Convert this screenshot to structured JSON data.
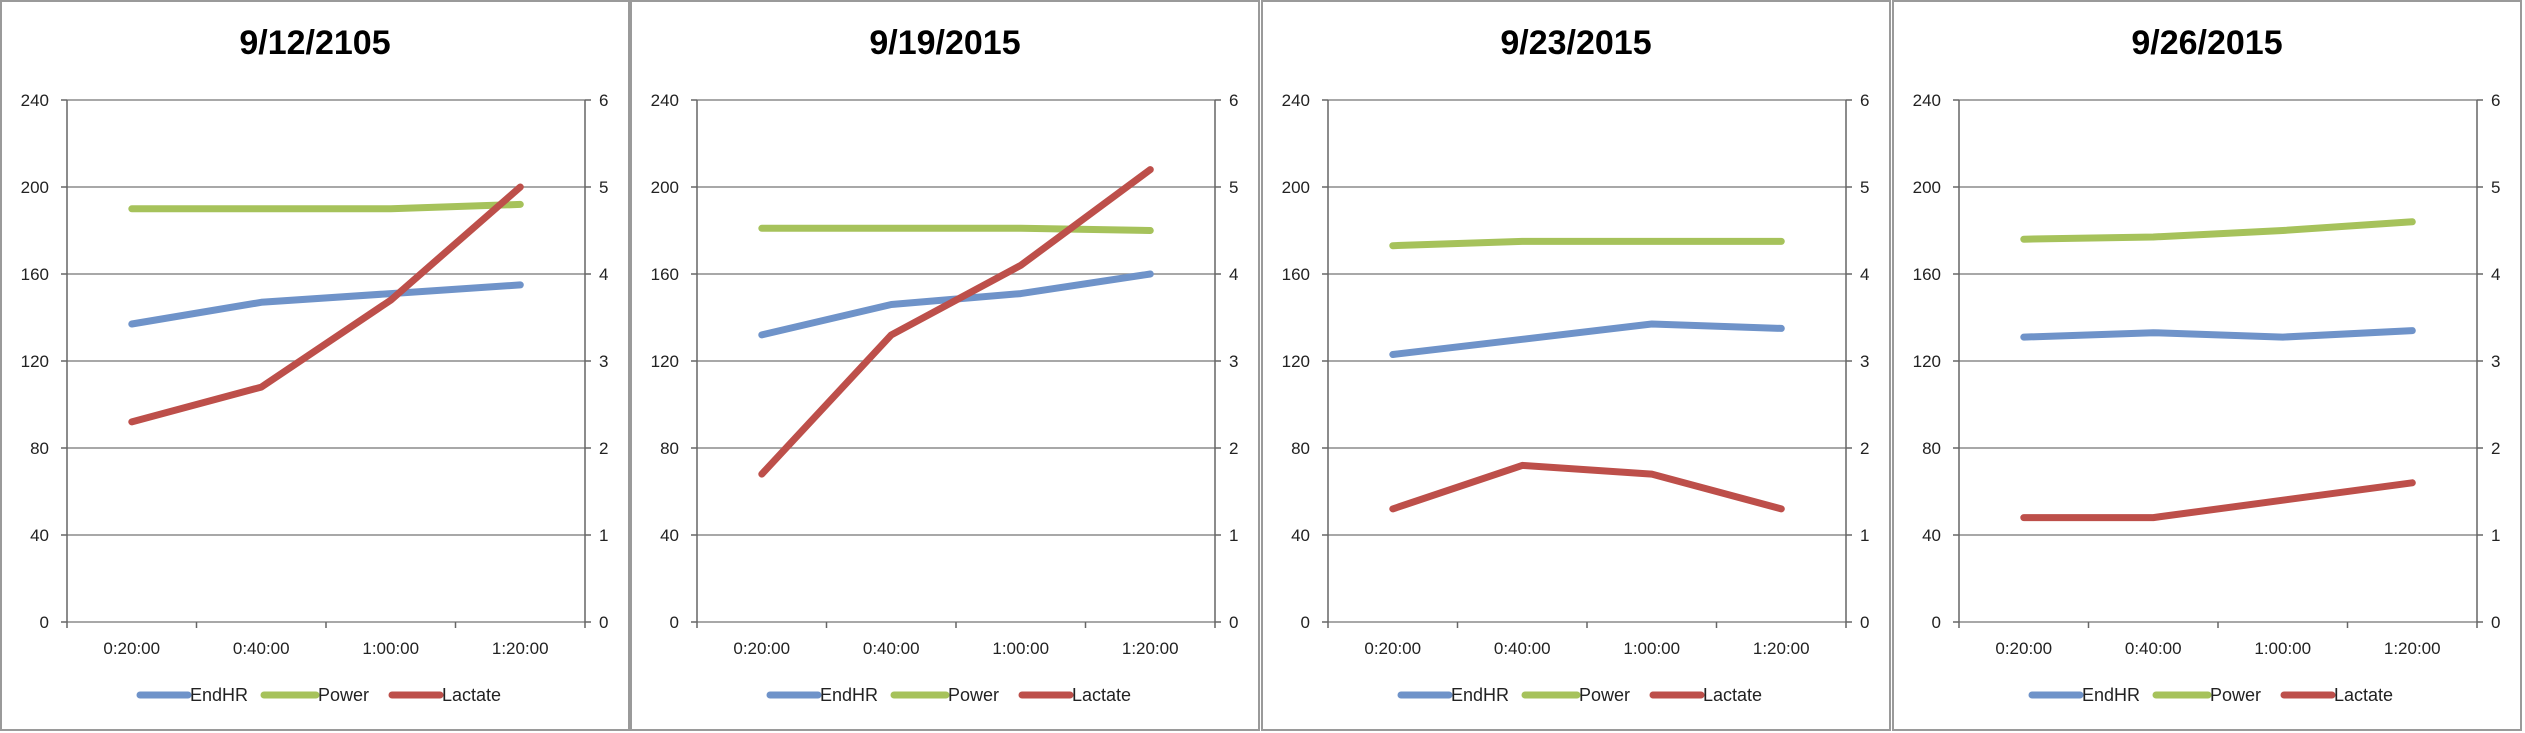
{
  "chart_data": [
    {
      "type": "line",
      "title": "9/12/2105",
      "categories": [
        "0:20:00",
        "0:40:00",
        "1:00:00",
        "1:20:00"
      ],
      "y_left_ticks": [
        "0",
        "40",
        "80",
        "120",
        "160",
        "200",
        "240"
      ],
      "y_right_ticks": [
        "0",
        "1",
        "2",
        "3",
        "4",
        "5",
        "6"
      ],
      "ylim_left": [
        0,
        240
      ],
      "ylim_right": [
        0,
        6
      ],
      "grid": true,
      "legend": "bottom",
      "series": [
        {
          "name": "EndHR",
          "axis": "left",
          "color": "#6f93c9",
          "values": [
            137,
            147,
            151,
            155
          ]
        },
        {
          "name": "Power",
          "axis": "left",
          "color": "#a6c25b",
          "values": [
            190,
            190,
            190,
            192
          ]
        },
        {
          "name": "Lactate",
          "axis": "right",
          "color": "#bd4f4a",
          "values": [
            2.3,
            2.7,
            3.7,
            5.0
          ]
        }
      ]
    },
    {
      "type": "line",
      "title": "9/19/2015",
      "categories": [
        "0:20:00",
        "0:40:00",
        "1:00:00",
        "1:20:00"
      ],
      "y_left_ticks": [
        "0",
        "40",
        "80",
        "120",
        "160",
        "200",
        "240"
      ],
      "y_right_ticks": [
        "0",
        "1",
        "2",
        "3",
        "4",
        "5",
        "6"
      ],
      "ylim_left": [
        0,
        240
      ],
      "ylim_right": [
        0,
        6
      ],
      "grid": true,
      "legend": "bottom",
      "series": [
        {
          "name": "EndHR",
          "axis": "left",
          "color": "#6f93c9",
          "values": [
            132,
            146,
            151,
            160
          ]
        },
        {
          "name": "Power",
          "axis": "left",
          "color": "#a6c25b",
          "values": [
            181,
            181,
            181,
            180
          ]
        },
        {
          "name": "Lactate",
          "axis": "right",
          "color": "#bd4f4a",
          "values": [
            1.7,
            3.3,
            4.1,
            5.2
          ]
        }
      ]
    },
    {
      "type": "line",
      "title": "9/23/2015",
      "categories": [
        "0:20:00",
        "0:40:00",
        "1:00:00",
        "1:20:00"
      ],
      "y_left_ticks": [
        "0",
        "40",
        "80",
        "120",
        "160",
        "200",
        "240"
      ],
      "y_right_ticks": [
        "0",
        "1",
        "2",
        "3",
        "4",
        "5",
        "6"
      ],
      "ylim_left": [
        0,
        240
      ],
      "ylim_right": [
        0,
        6
      ],
      "grid": true,
      "legend": "bottom",
      "series": [
        {
          "name": "EndHR",
          "axis": "left",
          "color": "#6f93c9",
          "values": [
            123,
            130,
            137,
            135
          ]
        },
        {
          "name": "Power",
          "axis": "left",
          "color": "#a6c25b",
          "values": [
            173,
            175,
            175,
            175
          ]
        },
        {
          "name": "Lactate",
          "axis": "right",
          "color": "#bd4f4a",
          "values": [
            1.3,
            1.8,
            1.7,
            1.3
          ]
        }
      ]
    },
    {
      "type": "line",
      "title": "9/26/2015",
      "categories": [
        "0:20:00",
        "0:40:00",
        "1:00:00",
        "1:20:00"
      ],
      "y_left_ticks": [
        "0",
        "40",
        "80",
        "120",
        "160",
        "200",
        "240"
      ],
      "y_right_ticks": [
        "0",
        "1",
        "2",
        "3",
        "4",
        "5",
        "6"
      ],
      "ylim_left": [
        0,
        240
      ],
      "ylim_right": [
        0,
        6
      ],
      "grid": true,
      "legend": "bottom",
      "series": [
        {
          "name": "EndHR",
          "axis": "left",
          "color": "#6f93c9",
          "values": [
            131,
            133,
            131,
            134
          ]
        },
        {
          "name": "Power",
          "axis": "left",
          "color": "#a6c25b",
          "values": [
            176,
            177,
            180,
            184
          ]
        },
        {
          "name": "Lactate",
          "axis": "right",
          "color": "#bd4f4a",
          "values": [
            1.2,
            1.2,
            1.4,
            1.6
          ]
        }
      ]
    }
  ]
}
